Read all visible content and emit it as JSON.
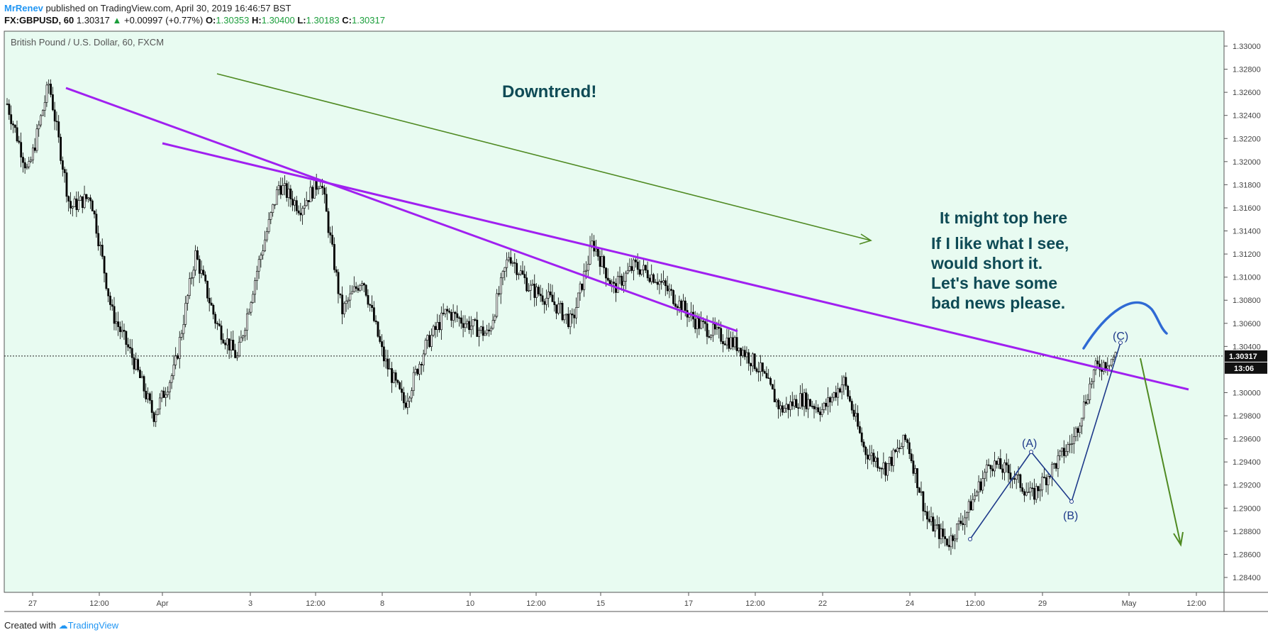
{
  "header": {
    "author": "MrRenev",
    "published": "published on TradingView.com, April 30, 2019 16:46:57 BST",
    "symbol": "FX:GBPUSD, 60",
    "last": "1.30317",
    "arrow": "▲",
    "change": "+0.00997 (+0.77%)",
    "o_label": "O:",
    "o": "1.30353",
    "h_label": "H:",
    "h": "1.30400",
    "l_label": "L:",
    "l": "1.30183",
    "c_label": "C:",
    "c": "1.30317"
  },
  "footer": {
    "created_with": "Created with",
    "brand": "TradingView"
  },
  "colors": {
    "background": "#e8fbf1",
    "trendline": "#a020f0",
    "arrow_green": "#4f8a22",
    "wave_blue": "#1e3a8a",
    "curve_blue": "#2f6ad4",
    "annotation": "#0e4a55"
  },
  "chart_data": {
    "type": "candlestick",
    "title": "British Pound / U.S. Dollar, 60, FXCM",
    "x_tick_labels": [
      "27",
      "12:00",
      "Apr",
      "3",
      "12:00",
      "8",
      "10",
      "12:00",
      "15",
      "17",
      "12:00",
      "22",
      "24",
      "12:00",
      "29",
      "May",
      "12:00"
    ],
    "y_ticks": [
      "1.33000",
      "1.32800",
      "1.32600",
      "1.32400",
      "1.32200",
      "1.32000",
      "1.31800",
      "1.31600",
      "1.31400",
      "1.31200",
      "1.31000",
      "1.30800",
      "1.30600",
      "1.30400",
      "1.30000",
      "1.29800",
      "1.29600",
      "1.29400",
      "1.29200",
      "1.29000",
      "1.28800",
      "1.28600",
      "1.28400"
    ],
    "ylim": [
      1.2828,
      1.3318
    ],
    "current_price": "1.30317",
    "countdown": "13:06",
    "approx_close_path": [
      [
        "27",
        1.325
      ],
      [
        "27",
        1.319
      ],
      [
        "27 12:00",
        1.3268
      ],
      [
        "27 12:00",
        1.316
      ],
      [
        "28",
        1.317
      ],
      [
        "28 12:00",
        1.307
      ],
      [
        "29",
        1.303
      ],
      [
        "29",
        1.298
      ],
      [
        "Apr",
        1.302
      ],
      [
        "Apr 1",
        1.312
      ],
      [
        "Apr 2",
        1.306
      ],
      [
        "Apr 2",
        1.303
      ],
      [
        "3",
        1.311
      ],
      [
        "3",
        1.318
      ],
      [
        "3 12:00",
        1.316
      ],
      [
        "3 12:00",
        1.3185
      ],
      [
        "4",
        1.307
      ],
      [
        "5",
        1.31
      ],
      [
        "5",
        1.303
      ],
      [
        "8",
        1.299
      ],
      [
        "8",
        1.304
      ],
      [
        "9",
        1.307
      ],
      [
        "9",
        1.306
      ],
      [
        "10",
        1.305
      ],
      [
        "10",
        1.312
      ],
      [
        "10 12:00",
        1.309
      ],
      [
        "11",
        1.308
      ],
      [
        "12",
        1.306
      ],
      [
        "14",
        1.313
      ],
      [
        "15",
        1.309
      ],
      [
        "15",
        1.311
      ],
      [
        "16",
        1.31
      ],
      [
        "16",
        1.308
      ],
      [
        "17",
        1.306
      ],
      [
        "17",
        1.305
      ],
      [
        "18",
        1.304
      ],
      [
        "12:00",
        1.302
      ],
      [
        "19",
        1.2985
      ],
      [
        "22",
        1.2995
      ],
      [
        "23",
        1.2985
      ],
      [
        "23",
        1.301
      ],
      [
        "24",
        1.295
      ],
      [
        "24",
        1.2935
      ],
      [
        "25",
        1.296
      ],
      [
        "25",
        1.289
      ],
      [
        "12:00",
        1.287
      ],
      [
        "26",
        1.29
      ],
      [
        "26",
        1.294
      ],
      [
        "29",
        1.293
      ],
      [
        "29",
        1.291
      ],
      [
        "30",
        1.2935
      ],
      [
        "30",
        1.296
      ],
      [
        "30",
        1.302
      ],
      [
        "30",
        1.3032
      ]
    ],
    "annotations": {
      "downtrend": "Downtrend!",
      "might_top": "It might top here",
      "short_l1": "If I like what I see,",
      "short_l2": "would short it.",
      "short_l3": "Let's have some",
      "short_l4": "bad news please.",
      "wave_a": "(A)",
      "wave_b": "(B)",
      "wave_c": "(C)"
    }
  }
}
